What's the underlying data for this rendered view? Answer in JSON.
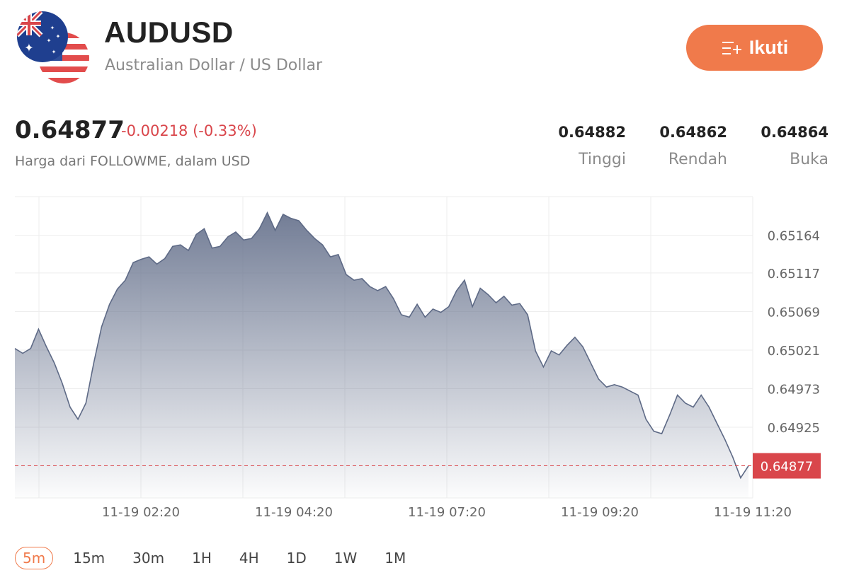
{
  "header": {
    "symbol": "AUDUSD",
    "pair_name": "Australian Dollar / US Dollar",
    "base_flag_icon": "australia-flag-icon",
    "quote_flag_icon": "us-flag-icon"
  },
  "follow_button": {
    "label": "Ikuti",
    "icon": "add-to-list-icon",
    "color": "#f07a4b"
  },
  "price": {
    "last": "0.64877",
    "change": "-0.00218 (-0.33%)",
    "change_color": "#d9464b",
    "source": "Harga dari FOLLOWME, dalam USD"
  },
  "stats": [
    {
      "value": "0.64882",
      "label": "Tinggi"
    },
    {
      "value": "0.64862",
      "label": "Rendah"
    },
    {
      "value": "0.64864",
      "label": "Buka"
    }
  ],
  "timeframes": {
    "items": [
      "5m",
      "15m",
      "30m",
      "1H",
      "4H",
      "1D",
      "1W",
      "1M"
    ],
    "selected": "5m"
  },
  "chart_data": {
    "type": "area",
    "title": "",
    "xlabel": "",
    "ylabel": "",
    "y_tick_labels": [
      "0.65164",
      "0.65117",
      "0.65069",
      "0.65021",
      "0.64973",
      "0.64925"
    ],
    "x_tick_labels": [
      "11-19 02:20",
      "11-19 04:20",
      "11-19 07:20",
      "11-19 09:20",
      "11-19 11:20"
    ],
    "ylim": [
      0.64837,
      0.65212
    ],
    "current_price_label": "0.64877",
    "current_price": 0.64877,
    "current_price_color": "#d9464b",
    "grid": true,
    "series": [
      {
        "values": [
          0.65023,
          0.65017,
          0.65023,
          0.65047,
          0.65025,
          0.65005,
          0.6498,
          0.6495,
          0.64935,
          0.64955,
          0.65005,
          0.6505,
          0.65078,
          0.65097,
          0.65108,
          0.6513,
          0.65134,
          0.65137,
          0.65128,
          0.65135,
          0.6515,
          0.65152,
          0.65145,
          0.65165,
          0.65172,
          0.65148,
          0.6515,
          0.65162,
          0.65168,
          0.65158,
          0.6516,
          0.65172,
          0.65192,
          0.6517,
          0.6519,
          0.65185,
          0.65182,
          0.6517,
          0.6516,
          0.65152,
          0.65137,
          0.6514,
          0.65115,
          0.65108,
          0.6511,
          0.651,
          0.65095,
          0.651,
          0.65085,
          0.65065,
          0.65062,
          0.65078,
          0.65062,
          0.65072,
          0.65068,
          0.65075,
          0.65095,
          0.65108,
          0.65075,
          0.65098,
          0.6509,
          0.6508,
          0.65088,
          0.65077,
          0.65079,
          0.65065,
          0.6502,
          0.65,
          0.6502,
          0.65015,
          0.65027,
          0.65037,
          0.65025,
          0.65005,
          0.64985,
          0.64975,
          0.64978,
          0.64975,
          0.6497,
          0.64965,
          0.64935,
          0.6492,
          0.64917,
          0.6494,
          0.64965,
          0.64955,
          0.6495,
          0.64965,
          0.6495,
          0.6493,
          0.6491,
          0.64888,
          0.64862,
          0.64877
        ]
      }
    ]
  }
}
